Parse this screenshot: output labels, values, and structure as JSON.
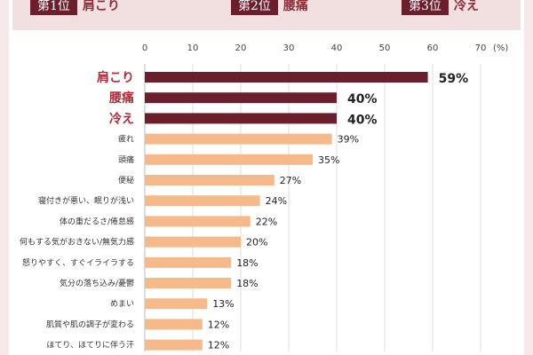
{
  "ranking": [
    {
      "rank_label": "第1位",
      "item": "肩こり"
    },
    {
      "rank_label": "第2位",
      "item": "腰痛"
    },
    {
      "rank_label": "第3位",
      "item": "冷え"
    }
  ],
  "colors": {
    "top_bar": "#6b1f2d",
    "top_text": "#b22a38",
    "other_bar": "#f6b98a",
    "label_text": "#333333",
    "value_text": "#222222",
    "grid": "#dddddd"
  },
  "chart_data": {
    "type": "bar",
    "orientation": "horizontal",
    "unit_label": "(%)",
    "xlim": [
      0,
      70
    ],
    "x_ticks": [
      "0",
      "10",
      "20",
      "30",
      "40",
      "50",
      "60",
      "70"
    ],
    "grid": true,
    "categories": [
      "肩こり",
      "腰痛",
      "冷え",
      "疲れ",
      "頭痛",
      "便秘",
      "寝付きが悪い、眠りが浅い",
      "体の重だるさ/倦怠感",
      "何もする気がおきない/無気力感",
      "怒りやすく、すぐイライラする",
      "気分の落ち込み/憂鬱",
      "めまい",
      "肌質や肌の調子が変わる",
      "ほてり、ほてりに伴う汗"
    ],
    "values": [
      59,
      40,
      40,
      39,
      35,
      27,
      24,
      22,
      20,
      18,
      18,
      13,
      12,
      12
    ],
    "value_labels": [
      "59%",
      "40%",
      "40%",
      "39%",
      "35%",
      "27%",
      "24%",
      "22%",
      "20%",
      "18%",
      "18%",
      "13%",
      "12%",
      "12%"
    ],
    "highlight_top": 3
  }
}
